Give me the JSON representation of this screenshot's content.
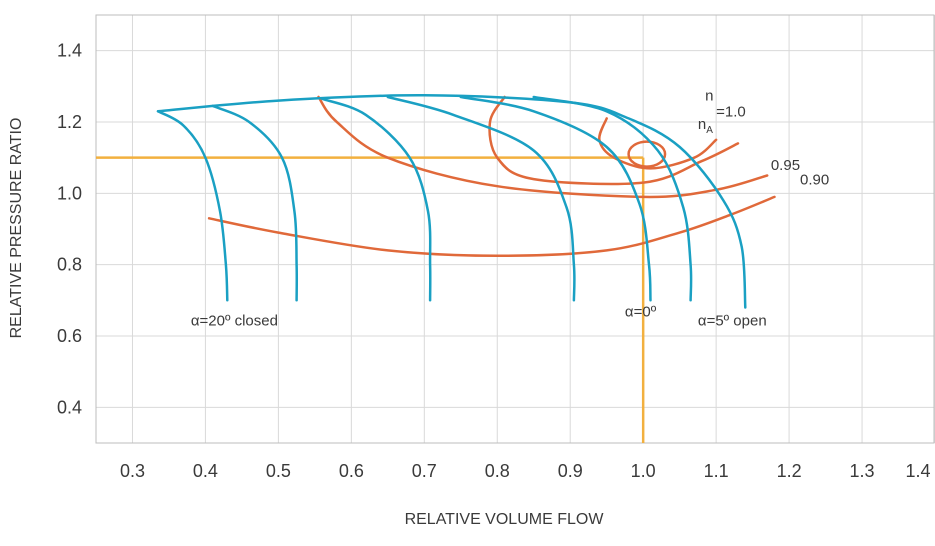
{
  "colors": {
    "background": "#ffffff",
    "grid": "#d9d9d9",
    "axis_frame": "#bdbdbd",
    "speed_lines": "#1aa0c3",
    "efficiency_lines": "#e0693a",
    "operating_point_lines": "#f2b03f"
  },
  "chart_data": {
    "type": "line",
    "title": "",
    "xlabel": "RELATIVE VOLUME FLOW",
    "ylabel": "RELATIVE PRESSURE RATIO",
    "xlim": [
      0.25,
      1.4
    ],
    "ylim": [
      0.3,
      1.5
    ],
    "xticks": [
      "0.3",
      "0.4",
      "0.5",
      "0.6",
      "0.7",
      "0.8",
      "0.9",
      "1.0",
      "1.1",
      "1.2",
      "1.3",
      "1.4"
    ],
    "yticks": [
      "0.4",
      "0.6",
      "0.8",
      "1.0",
      "1.2",
      "1.4"
    ],
    "grid": true,
    "series": [
      {
        "name": "α=20º closed",
        "group": "guide-vane",
        "points": [
          [
            0.335,
            1.23
          ],
          [
            0.37,
            1.19
          ],
          [
            0.4,
            1.1
          ],
          [
            0.42,
            0.95
          ],
          [
            0.428,
            0.8
          ],
          [
            0.43,
            0.7
          ]
        ]
      },
      {
        "group": "guide-vane",
        "points": [
          [
            0.41,
            1.245
          ],
          [
            0.46,
            1.2
          ],
          [
            0.505,
            1.1
          ],
          [
            0.522,
            0.95
          ],
          [
            0.525,
            0.8
          ],
          [
            0.525,
            0.7
          ]
        ]
      },
      {
        "group": "guide-vane",
        "points": [
          [
            0.56,
            1.265
          ],
          [
            0.62,
            1.22
          ],
          [
            0.68,
            1.1
          ],
          [
            0.705,
            0.95
          ],
          [
            0.708,
            0.8
          ],
          [
            0.708,
            0.7
          ]
        ]
      },
      {
        "group": "guide-vane",
        "points": [
          [
            0.65,
            1.27
          ],
          [
            0.74,
            1.22
          ],
          [
            0.85,
            1.12
          ],
          [
            0.895,
            0.96
          ],
          [
            0.905,
            0.8
          ],
          [
            0.905,
            0.7
          ]
        ]
      },
      {
        "group": "guide-vane",
        "points": [
          [
            0.75,
            1.27
          ],
          [
            0.85,
            1.23
          ],
          [
            0.95,
            1.13
          ],
          [
            0.995,
            0.97
          ],
          [
            1.008,
            0.8
          ],
          [
            1.01,
            0.7
          ]
        ]
      },
      {
        "name": "α=0º",
        "group": "guide-vane",
        "points": [
          [
            0.85,
            1.27
          ],
          [
            0.95,
            1.23
          ],
          [
            1.02,
            1.12
          ],
          [
            1.055,
            0.96
          ],
          [
            1.065,
            0.8
          ],
          [
            1.065,
            0.7
          ]
        ]
      },
      {
        "name": "α=5º open",
        "group": "guide-vane",
        "points": [
          [
            0.335,
            1.23
          ],
          [
            0.5,
            1.26
          ],
          [
            0.7,
            1.275
          ],
          [
            0.9,
            1.255
          ],
          [
            0.98,
            1.21
          ],
          [
            1.05,
            1.13
          ],
          [
            1.11,
            0.98
          ],
          [
            1.135,
            0.85
          ],
          [
            1.14,
            0.68
          ]
        ]
      },
      {
        "group": "efficiency",
        "points": [
          [
            0.555,
            1.27
          ],
          [
            0.58,
            1.2
          ],
          [
            0.65,
            1.1
          ],
          [
            0.8,
            1.02
          ],
          [
            1.0,
            0.99
          ],
          [
            1.1,
            1.01
          ],
          [
            1.17,
            1.05
          ]
        ]
      },
      {
        "group": "efficiency",
        "points": [
          [
            0.81,
            1.27
          ],
          [
            0.79,
            1.2
          ],
          [
            0.8,
            1.1
          ],
          [
            0.85,
            1.04
          ],
          [
            1.0,
            1.03
          ],
          [
            1.08,
            1.09
          ],
          [
            1.13,
            1.14
          ]
        ]
      },
      {
        "group": "efficiency",
        "points": [
          [
            0.95,
            1.21
          ],
          [
            0.94,
            1.15
          ],
          [
            0.96,
            1.1
          ],
          [
            1.01,
            1.07
          ],
          [
            1.07,
            1.1
          ],
          [
            1.1,
            1.15
          ]
        ]
      },
      {
        "group": "efficiency",
        "points": [
          [
            0.405,
            0.93
          ],
          [
            0.5,
            0.89
          ],
          [
            0.65,
            0.84
          ],
          [
            0.8,
            0.825
          ],
          [
            0.95,
            0.84
          ],
          [
            1.05,
            0.89
          ],
          [
            1.12,
            0.94
          ],
          [
            1.18,
            0.99
          ]
        ]
      },
      {
        "group": "efficiency-loop",
        "center": [
          1.005,
          1.11
        ],
        "rx": 0.025,
        "ry": 0.035
      },
      {
        "group": "operating-point",
        "points": [
          [
            0.25,
            1.1
          ],
          [
            1.0,
            1.1
          ]
        ]
      },
      {
        "group": "operating-point",
        "points": [
          [
            1.0,
            1.1
          ],
          [
            1.0,
            0.3
          ]
        ]
      }
    ],
    "annotations": [
      {
        "text": "α=20º closed",
        "x": 0.38,
        "y": 0.63
      },
      {
        "text": "α=0º",
        "x": 0.975,
        "y": 0.655
      },
      {
        "text": "α=5º open",
        "x": 1.075,
        "y": 0.63
      },
      {
        "text": "n",
        "sub": "",
        "x": 1.085,
        "y": 1.26
      },
      {
        "text": "=1.0",
        "sub": "",
        "x": 1.1,
        "y": 1.215
      },
      {
        "text": "n",
        "sub": "A",
        "x": 1.075,
        "y": 1.18
      },
      {
        "text": "0.95",
        "sub": "",
        "x": 1.175,
        "y": 1.065
      },
      {
        "text": "0.90",
        "sub": "",
        "x": 1.215,
        "y": 1.025
      }
    ]
  }
}
